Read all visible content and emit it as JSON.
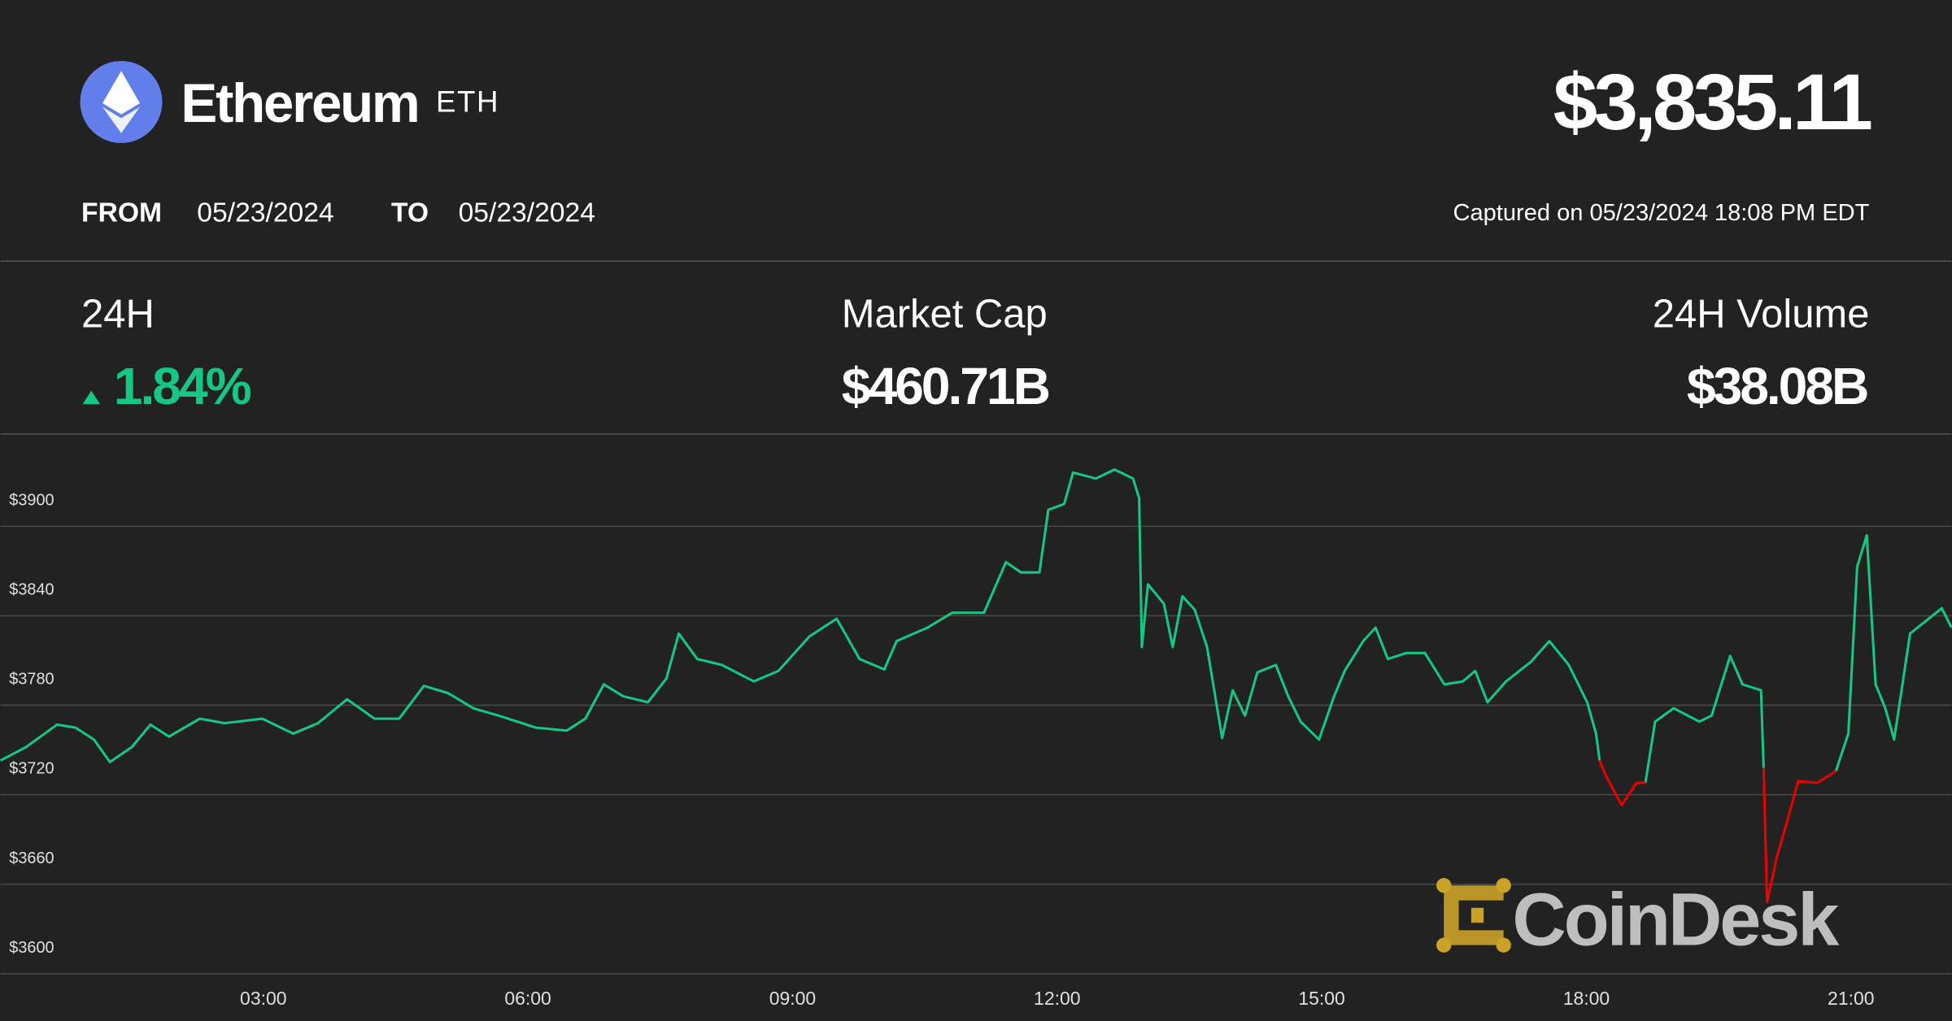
{
  "header": {
    "name": "Ethereum",
    "symbol": "ETH",
    "price": "$3,835.11",
    "from_label": "FROM",
    "from_date": "05/23/2024",
    "to_label": "TO",
    "to_date": "05/23/2024",
    "captured": "Captured on 05/23/2024 18:08 PM EDT"
  },
  "stats": [
    {
      "label": "24H",
      "value": "1.84%"
    },
    {
      "label": "Market Cap",
      "value": "$460.71B"
    },
    {
      "label": "24H Volume",
      "value": "$38.08B"
    }
  ],
  "watermark": "CoinDesk",
  "chart_data": {
    "type": "line",
    "x": [
      0.02,
      0.31,
      0.66,
      0.87,
      1.08,
      1.26,
      1.51,
      1.72,
      1.93,
      2.28,
      2.56,
      2.99,
      3.34,
      3.62,
      3.95,
      4.26,
      4.54,
      4.82,
      5.1,
      5.38,
      5.67,
      6.09,
      6.44,
      6.65,
      6.86,
      7.08,
      7.36,
      7.57,
      7.71,
      7.92,
      8.2,
      8.56,
      8.84,
      9.19,
      9.5,
      9.76,
      10.04,
      10.18,
      10.53,
      10.81,
      11.17,
      11.42,
      11.59,
      11.8,
      11.9,
      12.08,
      12.18,
      12.44,
      12.65,
      12.86,
      12.93,
      12.96,
      13.03,
      13.21,
      13.31,
      13.42,
      13.56,
      13.7,
      13.87,
      13.99,
      14.13,
      14.27,
      14.48,
      14.62,
      14.76,
      14.97,
      15.14,
      15.26,
      15.47,
      15.61,
      15.75,
      15.96,
      16.17,
      16.39,
      16.6,
      16.74,
      16.88,
      17.09,
      17.37,
      17.58,
      17.8,
      18.01,
      18.11,
      18.15,
      18.22,
      18.4,
      18.57,
      18.67,
      18.78,
      18.99,
      19.28,
      19.42,
      19.63,
      19.77,
      19.98,
      20.01,
      20.05,
      20.16,
      20.28,
      20.4,
      20.62,
      20.83,
      20.97,
      21.07,
      21.18,
      21.28,
      21.39,
      21.49,
      21.67,
      22.03,
      22.14
    ],
    "series": [
      {
        "color": "#16c784",
        "values": [
          3743,
          3752,
          3767,
          3765,
          3757,
          3742,
          3752,
          3767,
          3759,
          3771,
          3768,
          3771,
          3761,
          3768,
          3784,
          3771,
          3771,
          3793,
          3788,
          3778,
          3773,
          3765,
          3763,
          3771,
          3794,
          3786,
          3782,
          3798,
          3828,
          3811,
          3807,
          3796,
          3803,
          3826,
          3838,
          3811,
          3804,
          3823,
          3832,
          3842,
          3842,
          3876,
          3869,
          3869,
          3911,
          3915,
          3936,
          3932,
          3938,
          3932,
          3919,
          3819,
          3861,
          3848,
          3819,
          3853,
          3844,
          3819,
          3758,
          3790,
          3773,
          3802,
          3807,
          3786,
          3769,
          3757,
          3786,
          3803,
          3823,
          3832,
          3811,
          3815,
          3815,
          3794,
          3796,
          3803,
          3782,
          3796,
          3809,
          3823,
          3807,
          3782,
          3761,
          3743,
          null,
          null,
          null,
          3728,
          3769,
          3778,
          3769,
          3773,
          3813,
          3794,
          3790,
          3738,
          null,
          null,
          null,
          null,
          null,
          3736,
          3761,
          3873,
          3894,
          3794,
          3778,
          3757,
          3828,
          3845,
          3832
        ]
      },
      {
        "color": "#ea0000",
        "values": [
          null,
          null,
          null,
          null,
          null,
          null,
          null,
          null,
          null,
          null,
          null,
          null,
          null,
          null,
          null,
          null,
          null,
          null,
          null,
          null,
          null,
          null,
          null,
          null,
          null,
          null,
          null,
          null,
          null,
          null,
          null,
          null,
          null,
          null,
          null,
          null,
          null,
          null,
          null,
          null,
          null,
          null,
          null,
          null,
          null,
          null,
          null,
          null,
          null,
          null,
          null,
          null,
          null,
          null,
          null,
          null,
          null,
          null,
          null,
          null,
          null,
          null,
          null,
          null,
          null,
          null,
          null,
          null,
          null,
          null,
          null,
          null,
          null,
          null,
          null,
          null,
          null,
          null,
          null,
          null,
          null,
          null,
          null,
          3743,
          3733,
          3713,
          3728,
          3728,
          null,
          null,
          null,
          null,
          null,
          null,
          null,
          3738,
          3648,
          3678,
          3703,
          3729,
          3728,
          3736,
          null,
          null,
          null,
          null,
          null,
          null,
          null,
          null,
          null
        ]
      }
    ],
    "xlim": [
      0.02,
      22.14
    ],
    "xticks": [
      {
        "value": 3,
        "label": "03:00"
      },
      {
        "value": 6,
        "label": "06:00"
      },
      {
        "value": 9,
        "label": "09:00"
      },
      {
        "value": 12,
        "label": "12:00"
      },
      {
        "value": 15,
        "label": "15:00"
      },
      {
        "value": 18,
        "label": "18:00"
      },
      {
        "value": 21,
        "label": "21:00"
      }
    ],
    "ylim": [
      3600,
      3961
    ],
    "yticks": [
      {
        "value": 3600,
        "label": "$3600"
      },
      {
        "value": 3660,
        "label": "$3660"
      },
      {
        "value": 3720,
        "label": "$3720"
      },
      {
        "value": 3780,
        "label": "$3780"
      },
      {
        "value": 3840,
        "label": "$3840"
      },
      {
        "value": 3900,
        "label": "$3900"
      }
    ],
    "grid": true
  }
}
